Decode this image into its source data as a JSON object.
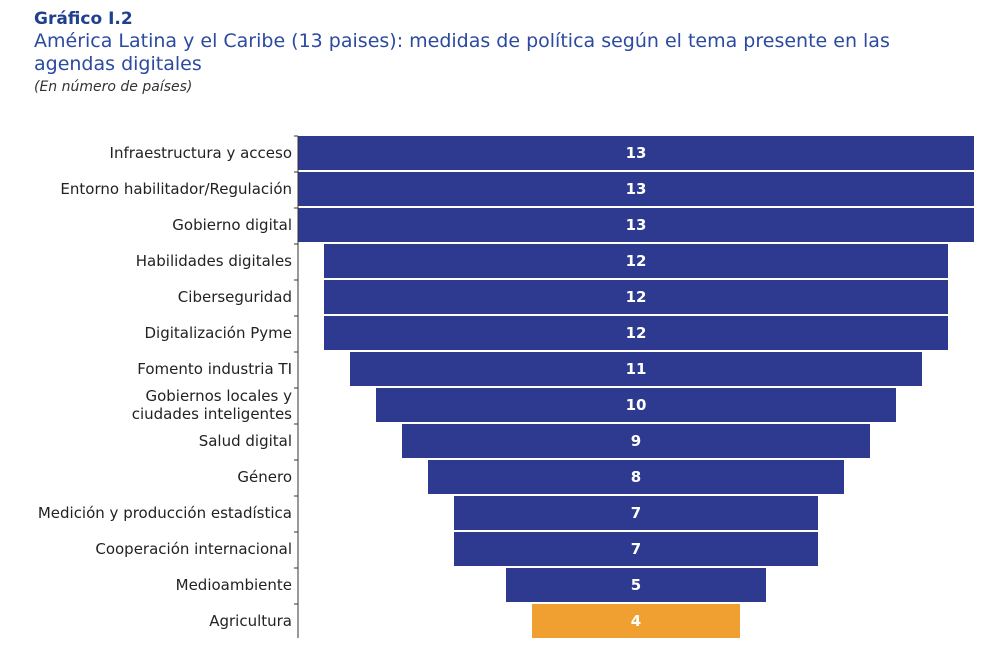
{
  "header": {
    "label": "Gráfico I.2",
    "title": "América Latina y el Caribe (13 paises): medidas de política según el tema presente en las agendas digitales",
    "subtitle": "(En número de países)"
  },
  "colors": {
    "bar": "#2e3a8f",
    "highlight": "#f0a030",
    "axis": "#333333"
  },
  "chart_data": {
    "type": "bar",
    "orientation": "horizontal",
    "layout": "centered",
    "categories": [
      "Infraestructura y acceso",
      "Entorno habilitador/Regulación",
      "Gobierno digital",
      "Habilidades digitales",
      "Ciberseguridad",
      "Digitalización Pyme",
      "Fomento industria TI",
      "Gobiernos locales y ciudades inteligentes",
      "Salud digital",
      "Género",
      "Medición y producción estadística",
      "Cooperación internacional",
      "Medioambiente",
      "Agricultura"
    ],
    "values": [
      13,
      13,
      13,
      12,
      12,
      12,
      11,
      10,
      9,
      8,
      7,
      7,
      5,
      4
    ],
    "highlight_index": 13,
    "xlim": [
      0,
      13
    ],
    "data_labels": "inside-center",
    "grid": false,
    "legend": "none"
  }
}
